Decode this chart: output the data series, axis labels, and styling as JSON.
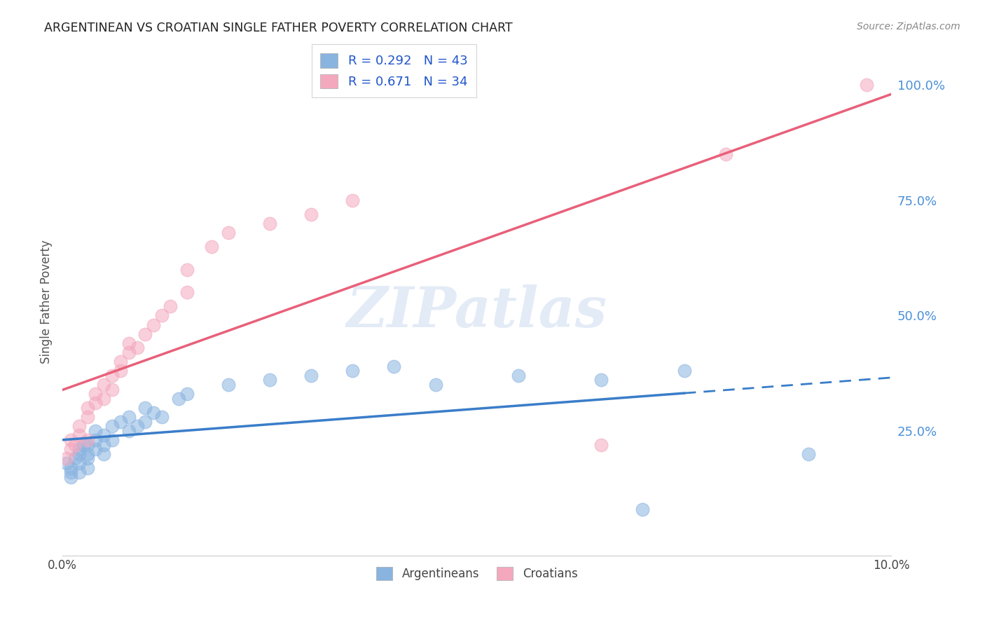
{
  "title": "ARGENTINEAN VS CROATIAN SINGLE FATHER POVERTY CORRELATION CHART",
  "source": "Source: ZipAtlas.com",
  "ylabel": "Single Father Poverty",
  "legend_label1": "Argentineans",
  "legend_label2": "Croatians",
  "R1": 0.292,
  "N1": 43,
  "R2": 0.671,
  "N2": 34,
  "color_arg": "#8ab4e0",
  "color_cro": "#f4a8be",
  "line_color_arg": "#3a7dc9",
  "line_color_cro": "#e8607a",
  "watermark": "ZIPatlas",
  "xlim": [
    0.0,
    0.1
  ],
  "ylim": [
    -0.02,
    1.08
  ],
  "yticks": [
    0.0,
    0.25,
    0.5,
    0.75,
    1.0
  ],
  "ytick_labels": [
    "",
    "25.0%",
    "50.0%",
    "75.0%",
    "100.0%"
  ],
  "arg_x": [
    0.0005,
    0.001,
    0.001,
    0.001,
    0.0015,
    0.002,
    0.002,
    0.002,
    0.002,
    0.0025,
    0.003,
    0.003,
    0.003,
    0.003,
    0.004,
    0.004,
    0.004,
    0.005,
    0.005,
    0.005,
    0.006,
    0.006,
    0.007,
    0.008,
    0.008,
    0.009,
    0.01,
    0.01,
    0.011,
    0.012,
    0.014,
    0.015,
    0.02,
    0.025,
    0.03,
    0.035,
    0.04,
    0.045,
    0.055,
    0.065,
    0.07,
    0.075,
    0.09
  ],
  "arg_y": [
    0.18,
    0.17,
    0.16,
    0.15,
    0.19,
    0.2,
    0.18,
    0.21,
    0.16,
    0.22,
    0.2,
    0.22,
    0.19,
    0.17,
    0.23,
    0.21,
    0.25,
    0.22,
    0.24,
    0.2,
    0.26,
    0.23,
    0.27,
    0.28,
    0.25,
    0.26,
    0.3,
    0.27,
    0.29,
    0.28,
    0.32,
    0.33,
    0.35,
    0.36,
    0.37,
    0.38,
    0.39,
    0.35,
    0.37,
    0.36,
    0.08,
    0.38,
    0.2
  ],
  "cro_x": [
    0.0005,
    0.001,
    0.001,
    0.0015,
    0.002,
    0.002,
    0.003,
    0.003,
    0.003,
    0.004,
    0.004,
    0.005,
    0.005,
    0.006,
    0.006,
    0.007,
    0.007,
    0.008,
    0.008,
    0.009,
    0.01,
    0.011,
    0.012,
    0.013,
    0.015,
    0.015,
    0.018,
    0.02,
    0.025,
    0.03,
    0.035,
    0.065,
    0.08,
    0.097
  ],
  "cro_y": [
    0.19,
    0.21,
    0.23,
    0.22,
    0.24,
    0.26,
    0.23,
    0.28,
    0.3,
    0.31,
    0.33,
    0.32,
    0.35,
    0.34,
    0.37,
    0.38,
    0.4,
    0.42,
    0.44,
    0.43,
    0.46,
    0.48,
    0.5,
    0.52,
    0.55,
    0.6,
    0.65,
    0.68,
    0.7,
    0.72,
    0.75,
    0.22,
    0.85,
    1.0
  ],
  "solid_line_end_arg": 0.075,
  "dash_line_start_arg": 0.075,
  "dash_line_end_arg": 0.1
}
